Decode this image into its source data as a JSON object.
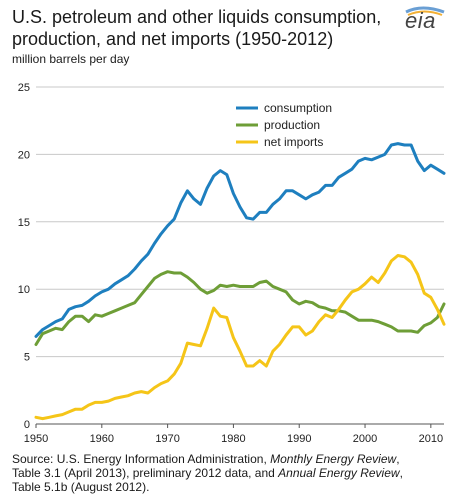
{
  "header": {
    "title": "U.S. petroleum and other liquids consumption, production, and net imports (1950-2012)",
    "units": "million barrels per day",
    "logo_text": "eia"
  },
  "source": {
    "line1_prefix": "Source: U.S. Energy Information Administration, ",
    "line1_italic": "Monthly Energy Review",
    "line1_suffix": ",",
    "line2_prefix": "Table 3.1 (April 2013), preliminary 2012 data, and ",
    "line2_italic": "Annual Energy Review",
    "line2_suffix": ",",
    "line3": "Table 5.1b (August 2012)."
  },
  "colors": {
    "consumption": "#1e7fbf",
    "production": "#6e9e37",
    "net_imports": "#f5c518",
    "grid": "#c8c8c8",
    "axis": "#555555"
  },
  "chart_data": {
    "type": "line",
    "title": "U.S. petroleum and other liquids consumption, production, and net imports (1950-2012)",
    "ylabel": "million barrels per day",
    "xlim": [
      1950,
      2012
    ],
    "ylim": [
      0,
      25
    ],
    "x_ticks": [
      1950,
      1960,
      1970,
      1980,
      1990,
      2000,
      2010
    ],
    "y_ticks": [
      0,
      5,
      10,
      15,
      20,
      25
    ],
    "grid": "horizontal",
    "legend_placement": "top-center",
    "x": [
      1950,
      1951,
      1952,
      1953,
      1954,
      1955,
      1956,
      1957,
      1958,
      1959,
      1960,
      1961,
      1962,
      1963,
      1964,
      1965,
      1966,
      1967,
      1968,
      1969,
      1970,
      1971,
      1972,
      1973,
      1974,
      1975,
      1976,
      1977,
      1978,
      1979,
      1980,
      1981,
      1982,
      1983,
      1984,
      1985,
      1986,
      1987,
      1988,
      1989,
      1990,
      1991,
      1992,
      1993,
      1994,
      1995,
      1996,
      1997,
      1998,
      1999,
      2000,
      2001,
      2002,
      2003,
      2004,
      2005,
      2006,
      2007,
      2008,
      2009,
      2010,
      2011,
      2012
    ],
    "series": [
      {
        "name": "consumption",
        "values": [
          6.5,
          7.0,
          7.3,
          7.6,
          7.8,
          8.5,
          8.7,
          8.8,
          9.1,
          9.5,
          9.8,
          10.0,
          10.4,
          10.7,
          11.0,
          11.5,
          12.1,
          12.6,
          13.4,
          14.1,
          14.7,
          15.2,
          16.4,
          17.3,
          16.7,
          16.3,
          17.5,
          18.4,
          18.8,
          18.5,
          17.1,
          16.1,
          15.3,
          15.2,
          15.7,
          15.7,
          16.3,
          16.7,
          17.3,
          17.3,
          17.0,
          16.7,
          17.0,
          17.2,
          17.7,
          17.7,
          18.3,
          18.6,
          18.9,
          19.5,
          19.7,
          19.6,
          19.8,
          20.0,
          20.7,
          20.8,
          20.7,
          20.7,
          19.5,
          18.8,
          19.2,
          18.9,
          18.6
        ]
      },
      {
        "name": "production",
        "values": [
          5.9,
          6.7,
          6.9,
          7.1,
          7.0,
          7.6,
          8.0,
          8.0,
          7.6,
          8.1,
          8.0,
          8.2,
          8.4,
          8.6,
          8.8,
          9.0,
          9.6,
          10.2,
          10.8,
          11.1,
          11.3,
          11.2,
          11.2,
          10.9,
          10.5,
          10.0,
          9.7,
          9.9,
          10.3,
          10.2,
          10.3,
          10.2,
          10.2,
          10.2,
          10.5,
          10.6,
          10.2,
          10.0,
          9.8,
          9.2,
          8.9,
          9.1,
          9.0,
          8.7,
          8.6,
          8.4,
          8.4,
          8.3,
          8.0,
          7.7,
          7.7,
          7.7,
          7.6,
          7.4,
          7.2,
          6.9,
          6.9,
          6.9,
          6.8,
          7.3,
          7.5,
          7.9,
          8.9
        ]
      },
      {
        "name": "net imports",
        "values": [
          0.5,
          0.4,
          0.5,
          0.6,
          0.7,
          0.9,
          1.1,
          1.1,
          1.4,
          1.6,
          1.6,
          1.7,
          1.9,
          2.0,
          2.1,
          2.3,
          2.4,
          2.3,
          2.7,
          3.0,
          3.2,
          3.7,
          4.5,
          6.0,
          5.9,
          5.8,
          7.1,
          8.6,
          8.0,
          7.9,
          6.4,
          5.4,
          4.3,
          4.3,
          4.7,
          4.3,
          5.4,
          5.9,
          6.6,
          7.2,
          7.2,
          6.6,
          6.9,
          7.6,
          8.1,
          7.9,
          8.5,
          9.2,
          9.8,
          10.0,
          10.4,
          10.9,
          10.5,
          11.2,
          12.1,
          12.5,
          12.4,
          12.0,
          11.1,
          9.7,
          9.4,
          8.5,
          7.4
        ]
      }
    ]
  }
}
